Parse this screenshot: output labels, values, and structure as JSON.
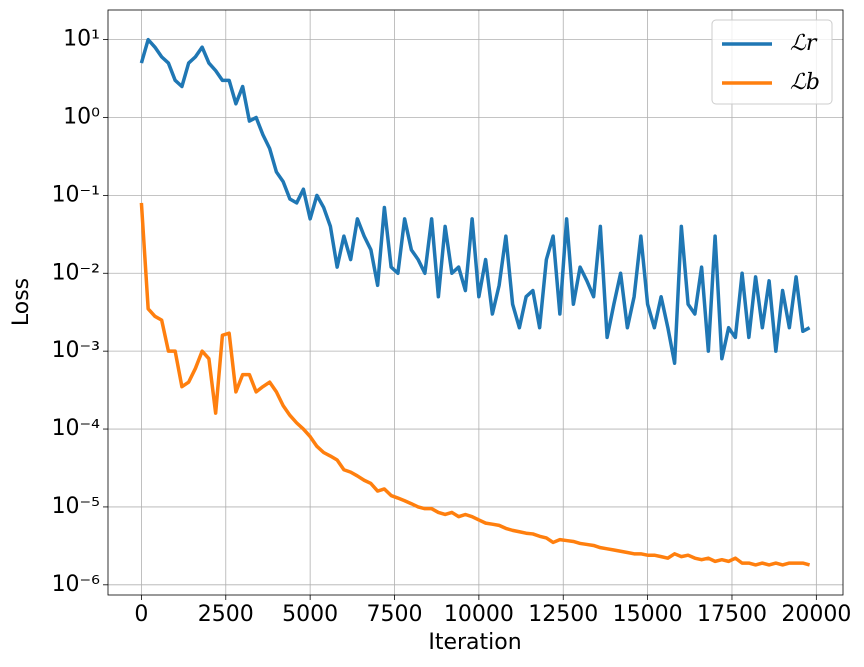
{
  "chart_data": {
    "type": "line",
    "x_label": "Iteration",
    "y_label": "Loss",
    "log_y": true,
    "grid": true,
    "legend": "upper right",
    "xlim": [
      -990,
      20790
    ],
    "ylim": [
      7.4e-07,
      24
    ],
    "xticks": [
      0,
      2500,
      5000,
      7500,
      10000,
      12500,
      15000,
      17500,
      20000
    ],
    "yticks": [
      {
        "value": 1e-06,
        "label": "10⁻⁶"
      },
      {
        "value": 1e-05,
        "label": "10⁻⁵"
      },
      {
        "value": 0.0001,
        "label": "10⁻⁴"
      },
      {
        "value": 0.001,
        "label": "10⁻³"
      },
      {
        "value": 0.01,
        "label": "10⁻²"
      },
      {
        "value": 0.1,
        "label": "10⁻¹"
      },
      {
        "value": 1,
        "label": "10⁰"
      },
      {
        "value": 10,
        "label": "10¹"
      }
    ],
    "x": [
      0,
      200,
      400,
      600,
      800,
      1000,
      1200,
      1400,
      1600,
      1800,
      2000,
      2200,
      2400,
      2600,
      2800,
      3000,
      3200,
      3400,
      3600,
      3800,
      4000,
      4200,
      4400,
      4600,
      4800,
      5000,
      5200,
      5400,
      5600,
      5800,
      6000,
      6200,
      6400,
      6600,
      6800,
      7000,
      7200,
      7400,
      7600,
      7800,
      8000,
      8200,
      8400,
      8600,
      8800,
      9000,
      9200,
      9400,
      9600,
      9800,
      10000,
      10200,
      10400,
      10600,
      10800,
      11000,
      11200,
      11400,
      11600,
      11800,
      12000,
      12200,
      12400,
      12600,
      12800,
      13000,
      13200,
      13400,
      13600,
      13800,
      14000,
      14200,
      14400,
      14600,
      14800,
      15000,
      15200,
      15400,
      15600,
      15800,
      16000,
      16200,
      16400,
      16600,
      16800,
      17000,
      17200,
      17400,
      17600,
      17800,
      18000,
      18200,
      18400,
      18600,
      18800,
      19000,
      19200,
      19400,
      19600,
      19800
    ],
    "series": [
      {
        "name": "ℒr",
        "color": "#1f77b4",
        "values": [
          5,
          10,
          8,
          6,
          5,
          3,
          2.5,
          5,
          6,
          8,
          5,
          4,
          3,
          3,
          1.5,
          2.5,
          0.9,
          1,
          0.6,
          0.4,
          0.2,
          0.15,
          0.09,
          0.08,
          0.12,
          0.05,
          0.1,
          0.07,
          0.04,
          0.012,
          0.03,
          0.015,
          0.05,
          0.03,
          0.02,
          0.007,
          0.07,
          0.012,
          0.01,
          0.05,
          0.02,
          0.015,
          0.01,
          0.05,
          0.005,
          0.04,
          0.01,
          0.012,
          0.006,
          0.05,
          0.005,
          0.015,
          0.003,
          0.007,
          0.03,
          0.004,
          0.002,
          0.005,
          0.006,
          0.002,
          0.015,
          0.03,
          0.003,
          0.05,
          0.004,
          0.012,
          0.008,
          0.005,
          0.04,
          0.0015,
          0.004,
          0.01,
          0.002,
          0.005,
          0.03,
          0.004,
          0.002,
          0.005,
          0.002,
          0.0007,
          0.04,
          0.004,
          0.003,
          0.012,
          0.001,
          0.03,
          0.0008,
          0.002,
          0.0015,
          0.01,
          0.0015,
          0.009,
          0.002,
          0.008,
          0.001,
          0.006,
          0.002,
          0.009,
          0.0018,
          0.002
        ]
      },
      {
        "name": "ℒb",
        "color": "#ff7f0e",
        "values": [
          0.08,
          0.0035,
          0.0028,
          0.0025,
          0.001,
          0.001,
          0.00035,
          0.0004,
          0.0006,
          0.001,
          0.0008,
          0.00016,
          0.0016,
          0.0017,
          0.0003,
          0.0005,
          0.0005,
          0.0003,
          0.00035,
          0.0004,
          0.0003,
          0.0002,
          0.00015,
          0.00012,
          0.0001,
          8e-05,
          6e-05,
          5e-05,
          4.5e-05,
          4e-05,
          3e-05,
          2.8e-05,
          2.5e-05,
          2.2e-05,
          2e-05,
          1.6e-05,
          1.7e-05,
          1.4e-05,
          1.3e-05,
          1.2e-05,
          1.1e-05,
          1e-05,
          9.5e-06,
          9.5e-06,
          8.5e-06,
          8e-06,
          8.5e-06,
          7.5e-06,
          8e-06,
          7.5e-06,
          6.8e-06,
          6.2e-06,
          6e-06,
          5.8e-06,
          5.3e-06,
          5e-06,
          4.8e-06,
          4.6e-06,
          4.5e-06,
          4.2e-06,
          4e-06,
          3.5e-06,
          3.8e-06,
          3.7e-06,
          3.6e-06,
          3.4e-06,
          3.3e-06,
          3.2e-06,
          3e-06,
          2.9e-06,
          2.8e-06,
          2.7e-06,
          2.6e-06,
          2.5e-06,
          2.5e-06,
          2.4e-06,
          2.4e-06,
          2.3e-06,
          2.2e-06,
          2.5e-06,
          2.3e-06,
          2.4e-06,
          2.2e-06,
          2.1e-06,
          2.2e-06,
          2e-06,
          2.1e-06,
          2e-06,
          2.2e-06,
          1.9e-06,
          1.9e-06,
          1.8e-06,
          1.9e-06,
          1.8e-06,
          1.9e-06,
          1.8e-06,
          1.9e-06,
          1.9e-06,
          1.9e-06,
          1.8e-06
        ]
      }
    ]
  }
}
